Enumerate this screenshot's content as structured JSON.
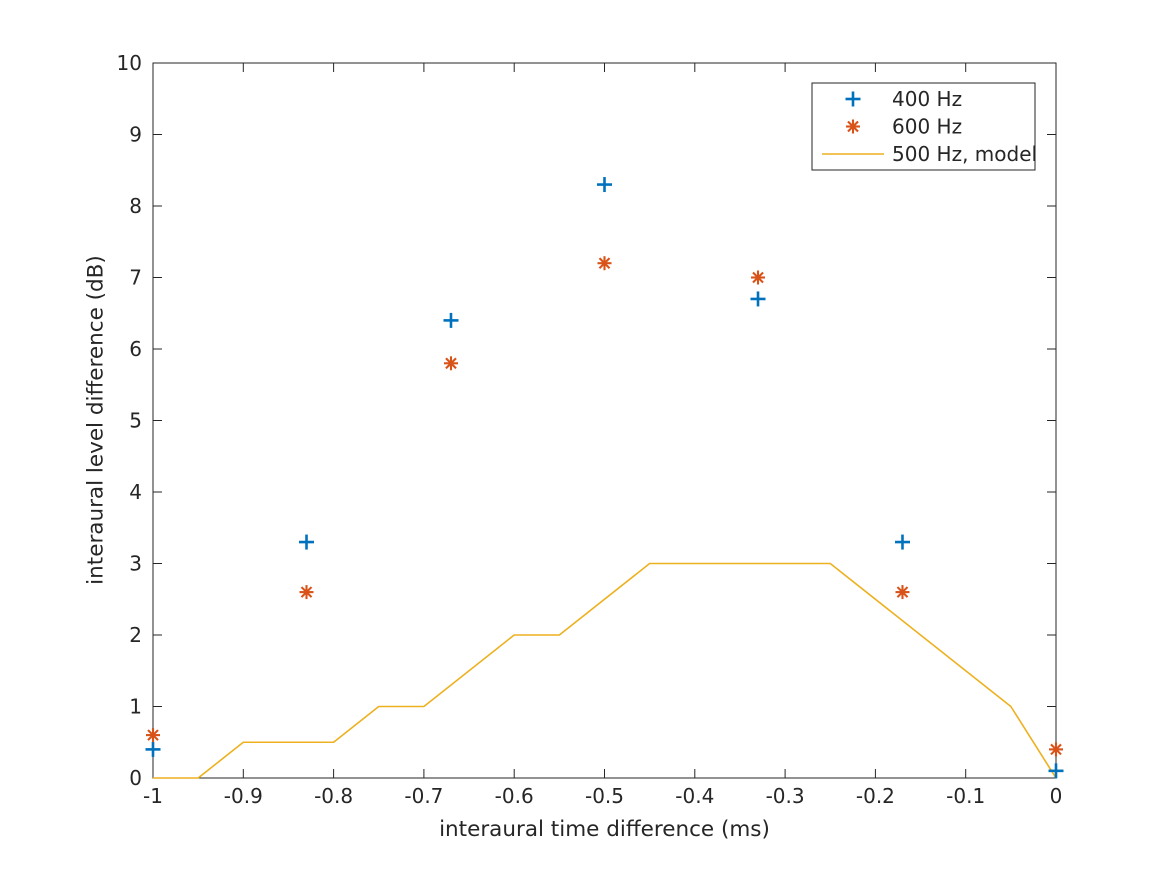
{
  "figure": {
    "background": "#ffffff",
    "axis_color": "#262626"
  },
  "chart_data": {
    "type": "scatter",
    "title": "",
    "xlabel": "interaural time difference (ms)",
    "ylabel": "interaural level difference (dB)",
    "xlim": [
      -1,
      0
    ],
    "ylim": [
      0,
      10
    ],
    "xticks": [
      -1,
      -0.9,
      -0.8,
      -0.7,
      -0.6,
      -0.5,
      -0.4,
      -0.3,
      -0.2,
      -0.1,
      0
    ],
    "xtick_labels": [
      "-1",
      "-0.9",
      "-0.8",
      "-0.7",
      "-0.6",
      "-0.5",
      "-0.4",
      "-0.3",
      "-0.2",
      "-0.1",
      "0"
    ],
    "yticks": [
      0,
      1,
      2,
      3,
      4,
      5,
      6,
      7,
      8,
      9,
      10
    ],
    "ytick_labels": [
      "0",
      "1",
      "2",
      "3",
      "4",
      "5",
      "6",
      "7",
      "8",
      "9",
      "10"
    ],
    "grid": false,
    "box": true,
    "legend_position": "top-right",
    "series": [
      {
        "name": "400 Hz",
        "type": "scatter",
        "marker": "plus",
        "color": "#0072BD",
        "x": [
          -1,
          -0.83,
          -0.67,
          -0.5,
          -0.33,
          -0.17,
          0
        ],
        "y": [
          0.4,
          3.3,
          6.4,
          8.3,
          6.7,
          3.3,
          0.1
        ]
      },
      {
        "name": "600 Hz",
        "type": "scatter",
        "marker": "asterisk",
        "color": "#D95319",
        "x": [
          -1,
          -0.83,
          -0.67,
          -0.5,
          -0.33,
          -0.17,
          0
        ],
        "y": [
          0.6,
          2.6,
          5.8,
          7.2,
          7.0,
          2.6,
          0.4
        ]
      },
      {
        "name": "500 Hz, model",
        "type": "line",
        "color": "#EDB120",
        "x": [
          -1,
          -0.95,
          -0.9,
          -0.8,
          -0.75,
          -0.7,
          -0.6,
          -0.55,
          -0.45,
          -0.25,
          -0.05,
          0
        ],
        "y": [
          0,
          0,
          0.5,
          0.5,
          1,
          1,
          2,
          2,
          3,
          3,
          1,
          0
        ]
      }
    ]
  }
}
